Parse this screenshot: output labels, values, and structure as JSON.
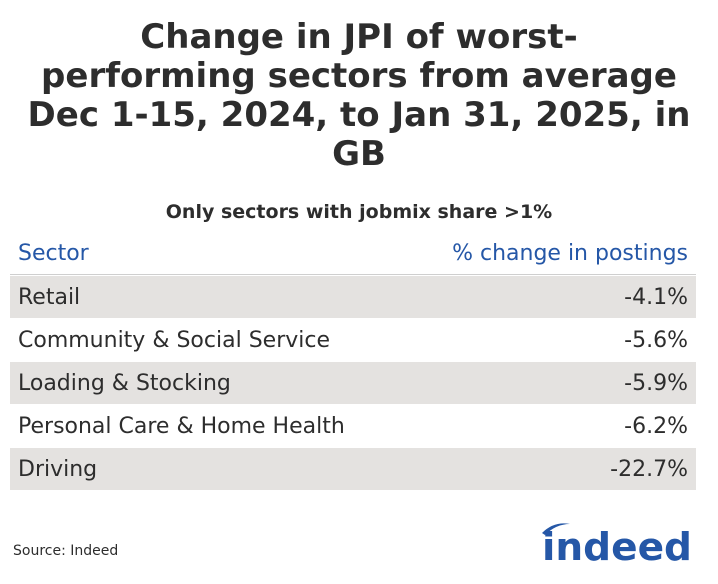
{
  "title": "Change in JPI of worst-performing sectors from average Dec 1-15, 2024, to Jan 31, 2025, in GB",
  "title_lines": [
    "Change in JPI of worst-",
    "performing sectors from average",
    "Dec 1-15, 2024, to Jan 31, 2025, in",
    "GB"
  ],
  "subtitle": "Only sectors with jobmix share >1%",
  "source": "Source: Indeed",
  "logo_text": "indeed",
  "colors": {
    "header_text": "#2557a7",
    "shaded_row": "#e4e2e0",
    "text": "#2d2d2d",
    "logo": "#2557a7"
  },
  "chart_data": {
    "type": "table",
    "columns": [
      "Sector",
      "% change in postings"
    ],
    "rows": [
      {
        "sector": "Retail",
        "value": "-4.1%"
      },
      {
        "sector": "Community & Social Service",
        "value": "-5.6%"
      },
      {
        "sector": "Loading & Stocking",
        "value": "-5.9%"
      },
      {
        "sector": "Personal Care & Home Health",
        "value": "-6.2%"
      },
      {
        "sector": "Driving",
        "value": "-22.7%"
      }
    ],
    "values": [
      -4.1,
      -5.6,
      -5.9,
      -6.2,
      -22.7
    ]
  }
}
